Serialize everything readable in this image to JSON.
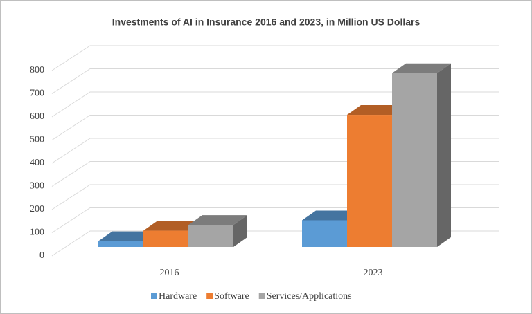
{
  "chart_data": {
    "type": "bar",
    "title": "Investments of AI in Insurance 2016 and 2023, in Million US Dollars",
    "categories": [
      "2016",
      "2023"
    ],
    "series": [
      {
        "name": "Hardware",
        "color": "#5b9bd5",
        "values": [
          25,
          115
        ]
      },
      {
        "name": "Software",
        "color": "#ed7d31",
        "values": [
          70,
          570
        ]
      },
      {
        "name": "Services/Applications",
        "color": "#a5a5a5",
        "values": [
          95,
          750
        ]
      }
    ],
    "ylim": [
      0,
      800
    ],
    "yticks": [
      0,
      100,
      200,
      300,
      400,
      500,
      600,
      700,
      800
    ],
    "grid": true,
    "legend": "bottom"
  }
}
